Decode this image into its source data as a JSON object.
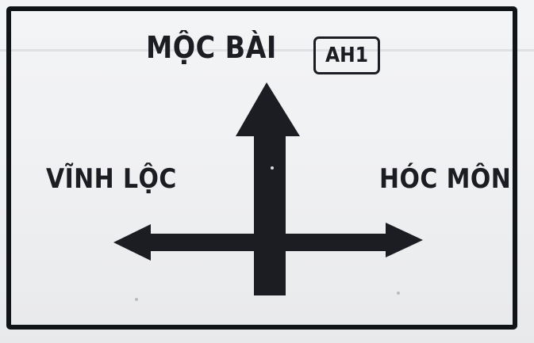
{
  "sign": {
    "destination_top": "MỘC BÀI",
    "destination_left": "VĨNH LỘC",
    "destination_right": "HÓC MÔN",
    "route_number": "AH1"
  },
  "colors": {
    "background": "#f0f1f3",
    "ink": "#1b1d22",
    "border": "#111417"
  },
  "icons": [
    "arrow-up-icon",
    "arrow-left-icon",
    "arrow-right-icon"
  ]
}
